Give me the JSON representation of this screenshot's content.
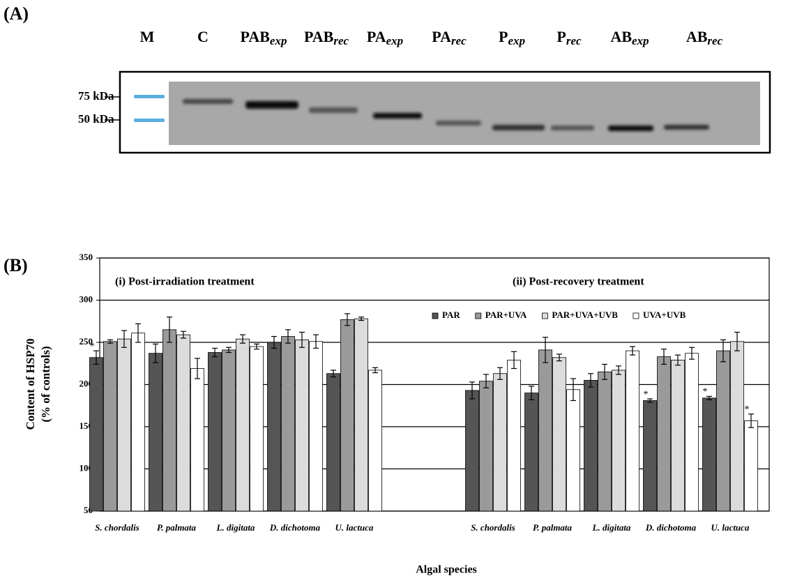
{
  "panel_labels": [
    "(A)",
    "(B)"
  ],
  "blot": {
    "lanes": [
      {
        "base": "M"
      },
      {
        "base": "C"
      },
      {
        "base": "PAB",
        "sub": "exp"
      },
      {
        "base": "PAB",
        "sub": "rec"
      },
      {
        "base": "PA",
        "sub": "exp"
      },
      {
        "base": "PA",
        "sub": "rec"
      },
      {
        "base": "P",
        "sub": "exp"
      },
      {
        "base": "P",
        "sub": "rec"
      },
      {
        "base": "AB",
        "sub": "exp"
      },
      {
        "base": "AB",
        "sub": "rec"
      }
    ],
    "markers": [
      "75 kDa",
      "50 kDa"
    ]
  },
  "chart_data": {
    "type": "bar",
    "categories": [
      "S. chordalis",
      "P. palmata",
      "L. digitata",
      "D. dichotoma",
      "U. lactuca",
      null,
      "S. chordalis",
      "P. palmata",
      "L. digitata",
      "D. dichotoma",
      "U. lactuca"
    ],
    "group_labels": [
      "(i)  Post-irradiation treatment",
      "(ii)  Post-recovery treatment"
    ],
    "xlabel": "Algal species",
    "ylabel": [
      "Content of HSP70",
      "(% of controls)"
    ],
    "ylim": [
      50,
      350
    ],
    "yticks": [
      50,
      100,
      150,
      200,
      250,
      300,
      350
    ],
    "grid": true,
    "legend": "top-right",
    "series": [
      {
        "name": "PAR",
        "color": "#555555",
        "values": [
          232,
          237,
          238,
          250,
          213,
          null,
          193,
          190,
          205,
          181,
          184
        ],
        "errors": [
          8,
          11,
          5,
          7,
          4,
          null,
          10,
          8,
          8,
          2,
          2
        ],
        "significance": [
          "*",
          null,
          null,
          null,
          null,
          null,
          null,
          null,
          null,
          "*",
          "*"
        ]
      },
      {
        "name": "PAR+UVA",
        "color": "#9a9a9a",
        "values": [
          251,
          265,
          241,
          257,
          277,
          null,
          204,
          241,
          215,
          233,
          240
        ],
        "errors": [
          2,
          15,
          3,
          8,
          7,
          null,
          8,
          15,
          9,
          9,
          13
        ],
        "significance": [
          null,
          null,
          null,
          null,
          null,
          null,
          null,
          null,
          null,
          null,
          null
        ]
      },
      {
        "name": "PAR+UVA+UVB",
        "color": "#dcdcdc",
        "values": [
          254,
          259,
          254,
          253,
          278,
          null,
          213,
          232,
          217,
          229,
          251
        ],
        "errors": [
          10,
          4,
          5,
          9,
          2,
          null,
          7,
          4,
          5,
          6,
          11
        ],
        "significance": [
          null,
          null,
          null,
          null,
          null,
          null,
          null,
          null,
          null,
          null,
          null
        ]
      },
      {
        "name": "UVA+UVB",
        "color": "#ffffff",
        "values": [
          261,
          219,
          245,
          251,
          217,
          null,
          229,
          194,
          240,
          237,
          157
        ],
        "errors": [
          11,
          12,
          3,
          8,
          3,
          null,
          10,
          13,
          5,
          7,
          8
        ],
        "significance": [
          null,
          null,
          null,
          null,
          null,
          null,
          null,
          null,
          null,
          null,
          "*"
        ]
      }
    ]
  }
}
